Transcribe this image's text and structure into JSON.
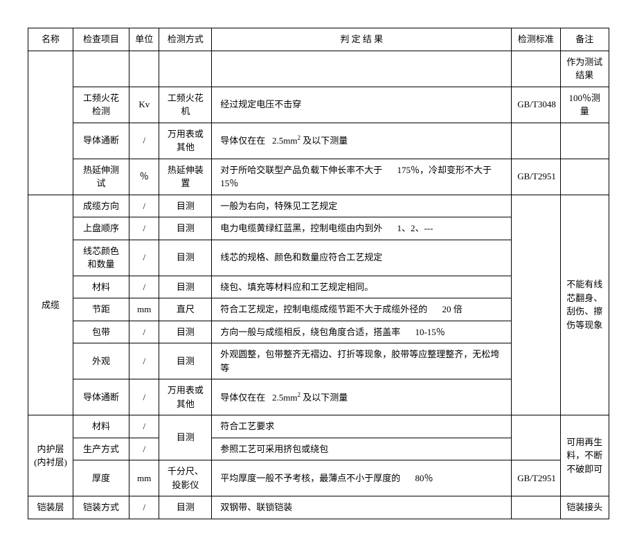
{
  "header": {
    "c1": "名称",
    "c2": "检查项目",
    "c3": "单位",
    "c4": "检测方式",
    "c5": "判 定 结 果",
    "c6": "检测标准",
    "c7": "备注"
  },
  "group1": {
    "r0_note": "作为测试结果",
    "r1_item": "工频火花检测",
    "r1_unit": "Kv",
    "r1_method": "工频火花机",
    "r1_result": "经过规定电压不击穿",
    "r1_std": "GB/T3048",
    "r1_note": "100％测量",
    "r2_item": "导体通断",
    "r2_unit": "/",
    "r2_method": "万用表或其他",
    "r2_result_a": "导体仅在在",
    "r2_result_b": "2.5mm",
    "r2_result_c": "及以下测量",
    "r3_item": "热延伸测试",
    "r3_unit": "％",
    "r3_method": "热延伸装置",
    "r3_result_a": "对于所哈交联型产品负载下伸长率不大于",
    "r3_result_b": "175％，冷却变形不大于",
    "r3_result_c": "15％",
    "r3_std": "GB/T2951"
  },
  "group2": {
    "name": "成缆",
    "r1_item": "成缆方向",
    "r1_unit": "/",
    "r1_method": "目测",
    "r1_result": "一般为右向，特殊见工艺规定",
    "r2_item": "上盘顺序",
    "r2_unit": "/",
    "r2_method": "目测",
    "r2_result_a": "电力电缆黄绿红蓝黑，控制电缆由内到外",
    "r2_result_b": "1、2、---",
    "r3_item": "线芯颜色和数量",
    "r3_unit": "/",
    "r3_method": "目测",
    "r3_result": "线芯的规格、颜色和数量应符合工艺规定",
    "r4_item": "材料",
    "r4_unit": "/",
    "r4_method": "目测",
    "r4_result": "绕包、填充等材料应和工艺规定相同。",
    "r5_item": "节距",
    "r5_unit": "mm",
    "r5_method": "直尺",
    "r5_result_a": "符合工艺规定，控制电缆成缆节距不大于成缆外径的",
    "r5_result_b": "20 倍",
    "r6_item": "包带",
    "r6_unit": "/",
    "r6_method": "目测",
    "r6_result_a": "方向一般与成缆相反，绕包角度合适，搭盖率",
    "r6_result_b": "10-15％",
    "r7_item": "外观",
    "r7_unit": "/",
    "r7_method": "目测",
    "r7_result": "外观圆整，包带整齐无褶边、打折等现象，胶带等应整理整齐，无松垮等",
    "r8_item": "导体通断",
    "r8_unit": "/",
    "r8_method": "万用表或其他",
    "r8_result_a": "导体仅在在",
    "r8_result_b": "2.5mm",
    "r8_result_c": "及以下测量",
    "note": "不能有线芯翻身、刮伤、擦伤等现象"
  },
  "group3": {
    "name_a": "内护层",
    "name_b": "(内衬层)",
    "r1_item": "材料",
    "r1_unit": "/",
    "r1_method": "目测",
    "r1_result": "符合工艺要求",
    "r2_item": "生产方式",
    "r2_unit": "/",
    "r2_result": "参照工艺可采用挤包或绕包",
    "r3_item": "厚度",
    "r3_unit": "mm",
    "r3_method": "千分尺、投影仪",
    "r3_result_a": "平均厚度一般不予考核，最薄点不小于厚度的",
    "r3_result_b": "80％",
    "r3_std": "GB/T2951",
    "note": "可用再生料，不断不破即可"
  },
  "group4": {
    "name": "铠装层",
    "r1_item": "铠装方式",
    "r1_unit": "/",
    "r1_method": "目测",
    "r1_result": "双钢带、联锁铠装",
    "note": "铠装接头"
  }
}
